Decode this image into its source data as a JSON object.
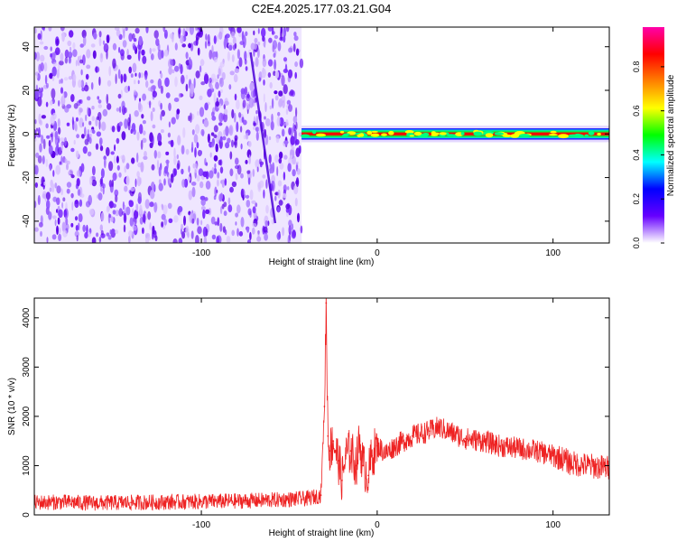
{
  "title": "C2E4.2025.177.03.21.G04",
  "chart_data": [
    {
      "type": "heatmap",
      "xlabel": "Height of straight line (km)",
      "ylabel": "Frequency (Hz)",
      "xlim": [
        -195,
        132
      ],
      "ylim": [
        -50,
        49
      ],
      "x_ticks": [
        -100,
        0,
        100
      ],
      "x_tick_labels": [
        "-100",
        "0",
        "100"
      ],
      "y_ticks": [
        -40,
        -20,
        0,
        20,
        40
      ],
      "y_tick_labels": [
        "-40",
        "-20",
        "0",
        "20",
        "40"
      ],
      "noise_region_x": [
        -195,
        -43
      ],
      "signal_region_x": [
        -43,
        132
      ],
      "signal_center_hz": 0,
      "signal_halfwidth_hz": 2,
      "grid": false,
      "colorbar": {
        "label": "Normalized spectral amplitude",
        "range": [
          0,
          0.98
        ],
        "ticks": [
          0.0,
          0.2,
          0.4,
          0.6,
          0.8
        ],
        "tick_labels": [
          "0.0",
          "0.2",
          "0.4",
          "0.6",
          "0.8"
        ],
        "colors": [
          "#ffffff",
          "#6600ff",
          "#0000ff",
          "#00ffff",
          "#00ff00",
          "#ffff00",
          "#ff8000",
          "#ff0000",
          "#ff00aa"
        ]
      }
    },
    {
      "type": "line",
      "xlabel": "Height of straight line (km)",
      "ylabel": "SNR (10 * v/v)",
      "xlim": [
        -195,
        132
      ],
      "ylim": [
        0,
        4400
      ],
      "x_ticks": [
        -100,
        0,
        100
      ],
      "x_tick_labels": [
        "-100",
        "0",
        "100"
      ],
      "y_ticks": [
        0,
        1000,
        2000,
        3000,
        4000
      ],
      "y_tick_labels": [
        "0",
        "1000",
        "2000",
        "3000",
        "4000"
      ],
      "grid": false,
      "series": [
        {
          "color": "#ee2222",
          "x": [
            -195,
            -180,
            -160,
            -140,
            -120,
            -100,
            -80,
            -60,
            -40,
            -32,
            -30,
            -29,
            -28,
            -27,
            -25,
            -22,
            -20,
            -18,
            -15,
            -12,
            -10,
            -8,
            -5,
            -3,
            0,
            5,
            10,
            15,
            20,
            30,
            35,
            40,
            50,
            60,
            70,
            80,
            90,
            100,
            105,
            110,
            120,
            132
          ],
          "y": [
            250,
            260,
            240,
            250,
            260,
            270,
            280,
            300,
            330,
            400,
            2200,
            4300,
            1600,
            1300,
            1500,
            1100,
            700,
            1200,
            1300,
            1000,
            1500,
            1000,
            800,
            1200,
            1400,
            1250,
            1400,
            1500,
            1600,
            1700,
            1780,
            1700,
            1550,
            1500,
            1400,
            1350,
            1300,
            1200,
            1150,
            1050,
            1000,
            950
          ]
        }
      ]
    }
  ]
}
